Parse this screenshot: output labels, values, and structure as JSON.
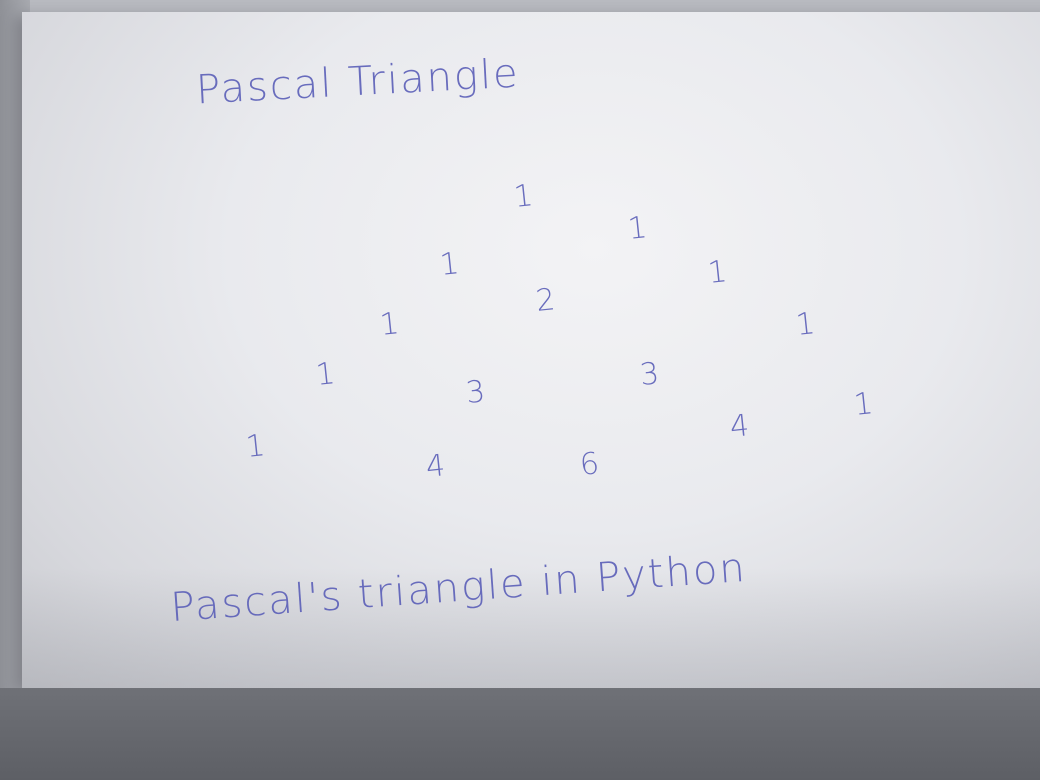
{
  "note": {
    "title": "Pascal Triangle",
    "caption": "Pascal's triangle in Python",
    "ink_color": "#5b5fb8",
    "numbers": [
      "1",
      "1",
      "1",
      "1",
      "2",
      "1",
      "1",
      "3",
      "3",
      "1",
      "1",
      "4",
      "6",
      "4",
      "1"
    ]
  }
}
